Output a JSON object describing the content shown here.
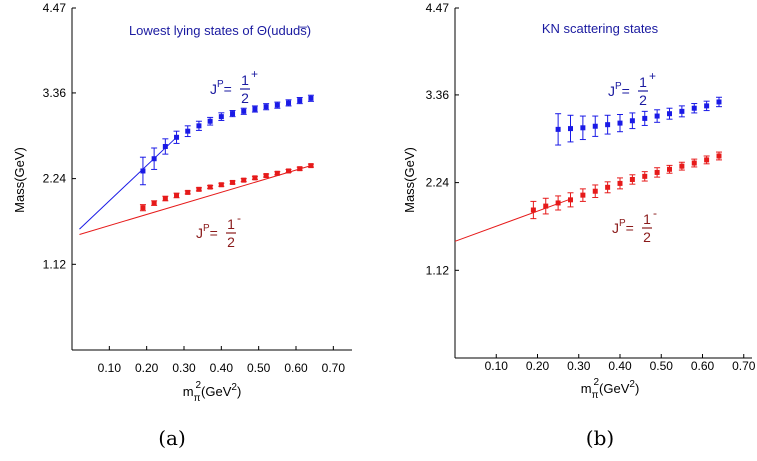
{
  "chart_data": [
    {
      "type": "scatter",
      "panel_label": "(a)",
      "title": "Lowest lying states of Θ(ududs̅)",
      "title_color": "#1a1aa0",
      "ylabel": "Mass(GeV)",
      "xlabel_base": "m",
      "xlabel_sub": "π",
      "xlabel_sup": "2",
      "xlabel_tail": "(GeV",
      "xlabel_tail_sup": "2",
      "xlabel_close": ")",
      "xlim": [
        0.0,
        0.75
      ],
      "ylim": [
        0.0,
        4.47
      ],
      "x_ticks": [
        0.1,
        0.2,
        0.3,
        0.4,
        0.5,
        0.6,
        0.7
      ],
      "x_tick_labels": [
        "0.10",
        "0.20",
        "0.30",
        "0.40",
        "0.50",
        "0.60",
        "0.70"
      ],
      "y_ticks": [
        1.12,
        2.24,
        3.36,
        4.47
      ],
      "y_tick_labels": [
        "1.12",
        "2.24",
        "3.36",
        "4.47"
      ],
      "series": [
        {
          "name_prefix": "J",
          "name_sup": "P",
          "name_eq": "=",
          "name_num": "1",
          "name_den": "2",
          "name_parity": "+",
          "color": "#1a1ae6",
          "label_color": "#1a1aa0",
          "x": [
            0.19,
            0.22,
            0.25,
            0.28,
            0.31,
            0.34,
            0.37,
            0.4,
            0.43,
            0.46,
            0.49,
            0.52,
            0.55,
            0.58,
            0.61,
            0.64
          ],
          "y": [
            2.34,
            2.5,
            2.66,
            2.78,
            2.86,
            2.93,
            2.99,
            3.05,
            3.09,
            3.12,
            3.15,
            3.18,
            3.2,
            3.23,
            3.26,
            3.29
          ],
          "err": [
            0.18,
            0.14,
            0.1,
            0.08,
            0.07,
            0.06,
            0.05,
            0.05,
            0.04,
            0.04,
            0.04,
            0.04,
            0.04,
            0.04,
            0.04,
            0.04
          ],
          "fit": {
            "x": [
              0.02,
              0.28
            ],
            "y": [
              1.58,
              2.78
            ]
          }
        },
        {
          "name_prefix": "J",
          "name_sup": "P",
          "name_eq": "=",
          "name_num": "1",
          "name_den": "2",
          "name_parity": "-",
          "color": "#e61a1a",
          "label_color": "#8a1a1a",
          "x": [
            0.19,
            0.22,
            0.25,
            0.28,
            0.31,
            0.34,
            0.37,
            0.4,
            0.43,
            0.46,
            0.49,
            0.52,
            0.55,
            0.58,
            0.61,
            0.64
          ],
          "y": [
            1.86,
            1.92,
            1.98,
            2.02,
            2.06,
            2.1,
            2.13,
            2.16,
            2.19,
            2.22,
            2.25,
            2.28,
            2.31,
            2.34,
            2.37,
            2.41
          ],
          "err": [
            0.04,
            0.03,
            0.03,
            0.03,
            0.02,
            0.02,
            0.02,
            0.02,
            0.02,
            0.02,
            0.02,
            0.02,
            0.02,
            0.02,
            0.02,
            0.02
          ],
          "fit": {
            "x": [
              0.02,
              0.64
            ],
            "y": [
              1.51,
              2.41
            ]
          }
        }
      ]
    },
    {
      "type": "scatter",
      "panel_label": "(b)",
      "title": "KN scattering states",
      "title_color": "#1a1aa0",
      "ylabel": "Mass(GeV)",
      "xlabel_base": "m",
      "xlabel_sub": "π",
      "xlabel_sup": "2",
      "xlabel_tail": "(GeV",
      "xlabel_tail_sup": "2",
      "xlabel_close": ")",
      "xlim": [
        0.0,
        0.72
      ],
      "ylim": [
        0.0,
        4.47
      ],
      "x_ticks": [
        0.1,
        0.2,
        0.3,
        0.4,
        0.5,
        0.6,
        0.7
      ],
      "x_tick_labels": [
        "0.10",
        "0.20",
        "0.30",
        "0.40",
        "0.50",
        "0.60",
        "0.70"
      ],
      "y_ticks": [
        1.12,
        2.24,
        3.36,
        4.47
      ],
      "y_tick_labels": [
        "1.12",
        "2.24",
        "3.36",
        "4.47"
      ],
      "series": [
        {
          "name_prefix": "J",
          "name_sup": "P",
          "name_eq": "=",
          "name_num": "1",
          "name_den": "2",
          "name_parity": "+",
          "color": "#1a1ae6",
          "label_color": "#1a1aa0",
          "x": [
            0.25,
            0.28,
            0.31,
            0.34,
            0.37,
            0.4,
            0.43,
            0.46,
            0.49,
            0.52,
            0.55,
            0.58,
            0.61,
            0.64
          ],
          "y": [
            2.92,
            2.93,
            2.94,
            2.96,
            2.98,
            3.0,
            3.03,
            3.06,
            3.09,
            3.12,
            3.15,
            3.19,
            3.22,
            3.27
          ],
          "err": [
            0.2,
            0.17,
            0.15,
            0.13,
            0.12,
            0.11,
            0.1,
            0.09,
            0.08,
            0.07,
            0.07,
            0.06,
            0.06,
            0.06
          ],
          "fit": null
        },
        {
          "name_prefix": "J",
          "name_sup": "P",
          "name_eq": "=",
          "name_num": "1",
          "name_den": "2",
          "name_parity": "-",
          "color": "#e61a1a",
          "label_color": "#8a1a1a",
          "x": [
            0.19,
            0.22,
            0.25,
            0.28,
            0.31,
            0.34,
            0.37,
            0.4,
            0.43,
            0.46,
            0.49,
            0.52,
            0.55,
            0.58,
            0.61,
            0.64
          ],
          "y": [
            1.89,
            1.94,
            1.98,
            2.02,
            2.08,
            2.13,
            2.18,
            2.23,
            2.28,
            2.32,
            2.37,
            2.41,
            2.45,
            2.49,
            2.53,
            2.58
          ],
          "err": [
            0.11,
            0.1,
            0.09,
            0.09,
            0.08,
            0.08,
            0.07,
            0.07,
            0.06,
            0.06,
            0.06,
            0.05,
            0.05,
            0.05,
            0.05,
            0.05
          ],
          "fit": {
            "x": [
              0.0,
              0.28
            ],
            "y": [
              1.49,
              2.03
            ]
          }
        }
      ]
    }
  ]
}
